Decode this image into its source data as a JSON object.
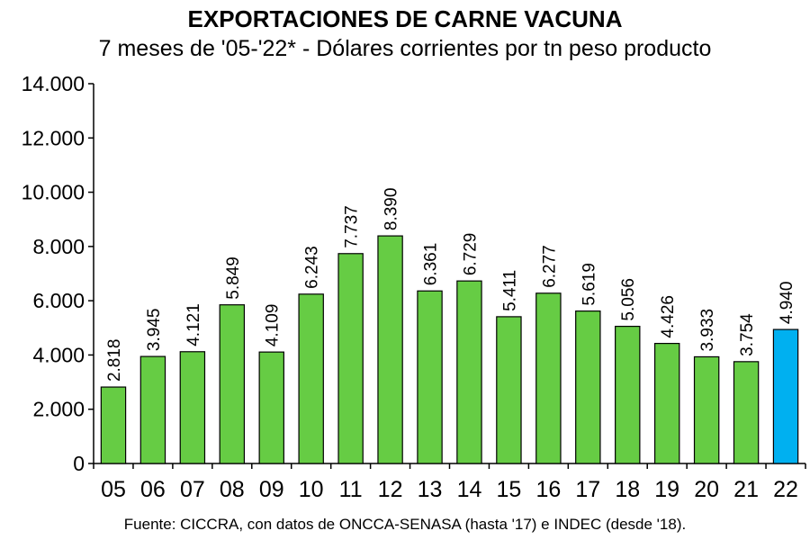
{
  "chart_data": {
    "type": "bar",
    "title": "EXPORTACIONES DE CARNE VACUNA",
    "subtitle": "7 meses de '05-'22* - Dólares corrientes por tn peso producto",
    "source": "Fuente: CICCRA, con datos de ONCCA-SENASA (hasta '17) e INDEC (desde '18).",
    "categories": [
      "05",
      "06",
      "07",
      "08",
      "09",
      "10",
      "11",
      "12",
      "13",
      "14",
      "15",
      "16",
      "17",
      "18",
      "19",
      "20",
      "21",
      "22"
    ],
    "values": [
      2818,
      3945,
      4121,
      5849,
      4109,
      6243,
      7737,
      8390,
      6361,
      6729,
      5411,
      6277,
      5619,
      5056,
      4426,
      3933,
      3754,
      4940
    ],
    "data_labels": [
      "2.818",
      "3.945",
      "4.121",
      "5.849",
      "4.109",
      "6.243",
      "7.737",
      "8.390",
      "6.361",
      "6.729",
      "5.411",
      "6.277",
      "5.619",
      "5.056",
      "4.426",
      "3.933",
      "3.754",
      "4.940"
    ],
    "y_ticks": [
      0,
      2000,
      4000,
      6000,
      8000,
      10000,
      12000,
      14000
    ],
    "y_tick_labels": [
      "0",
      "2.000",
      "4.000",
      "6.000",
      "8.000",
      "10.000",
      "12.000",
      "14.000"
    ],
    "ylim": [
      0,
      14000
    ],
    "grid": false,
    "legend": "none",
    "colors": {
      "bar": "#66cc44",
      "highlight": "#00b0f0",
      "outline": "#000000"
    },
    "highlight_categories": [
      "22"
    ]
  }
}
